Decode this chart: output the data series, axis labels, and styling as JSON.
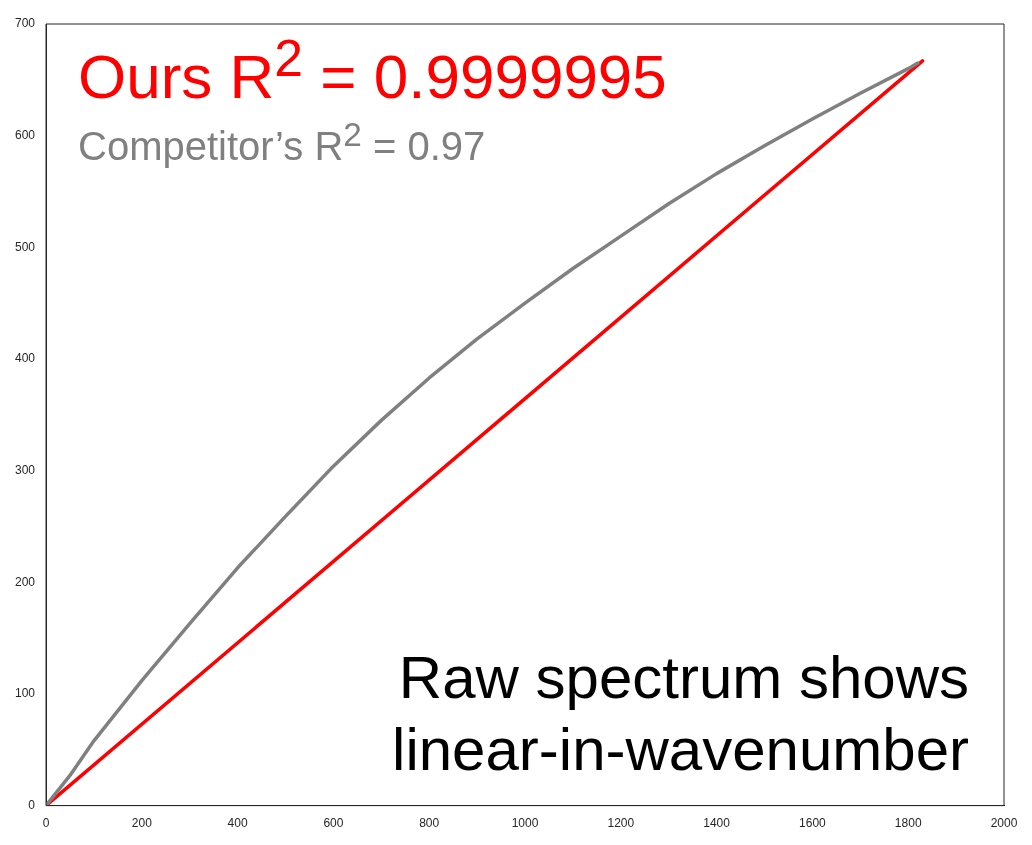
{
  "chart_data": {
    "type": "line",
    "xlim": [
      0,
      2000
    ],
    "ylim": [
      0,
      700
    ],
    "xticks": [
      0,
      200,
      400,
      600,
      800,
      1000,
      1200,
      1400,
      1600,
      1800,
      2000
    ],
    "yticks": [
      0,
      100,
      200,
      300,
      400,
      500,
      600,
      700
    ],
    "grid": false,
    "legend": "top left",
    "marker": "none",
    "series": [
      {
        "name": "Ours R$^{2}$ = 0.9999995",
        "color": "#ff0000",
        "x": [
          0,
          1830
        ],
        "values": [
          0,
          667
        ]
      },
      {
        "name": "Competitor’s R$^{2}$ = 0.97",
        "color": "#808080",
        "x": [
          0,
          50,
          100,
          200,
          300,
          400,
          500,
          600,
          700,
          800,
          900,
          1000,
          1100,
          1200,
          1300,
          1400,
          1500,
          1600,
          1700,
          1800,
          1820
        ],
        "values": [
          0,
          27,
          58,
          112,
          163,
          213,
          259,
          304,
          345,
          383,
          418,
          450,
          481,
          510,
          539,
          566,
          591,
          615,
          638,
          660,
          665
        ]
      }
    ],
    "annotations": [
      "Raw spectrum shows linear-in-wavenumber"
    ]
  }
}
